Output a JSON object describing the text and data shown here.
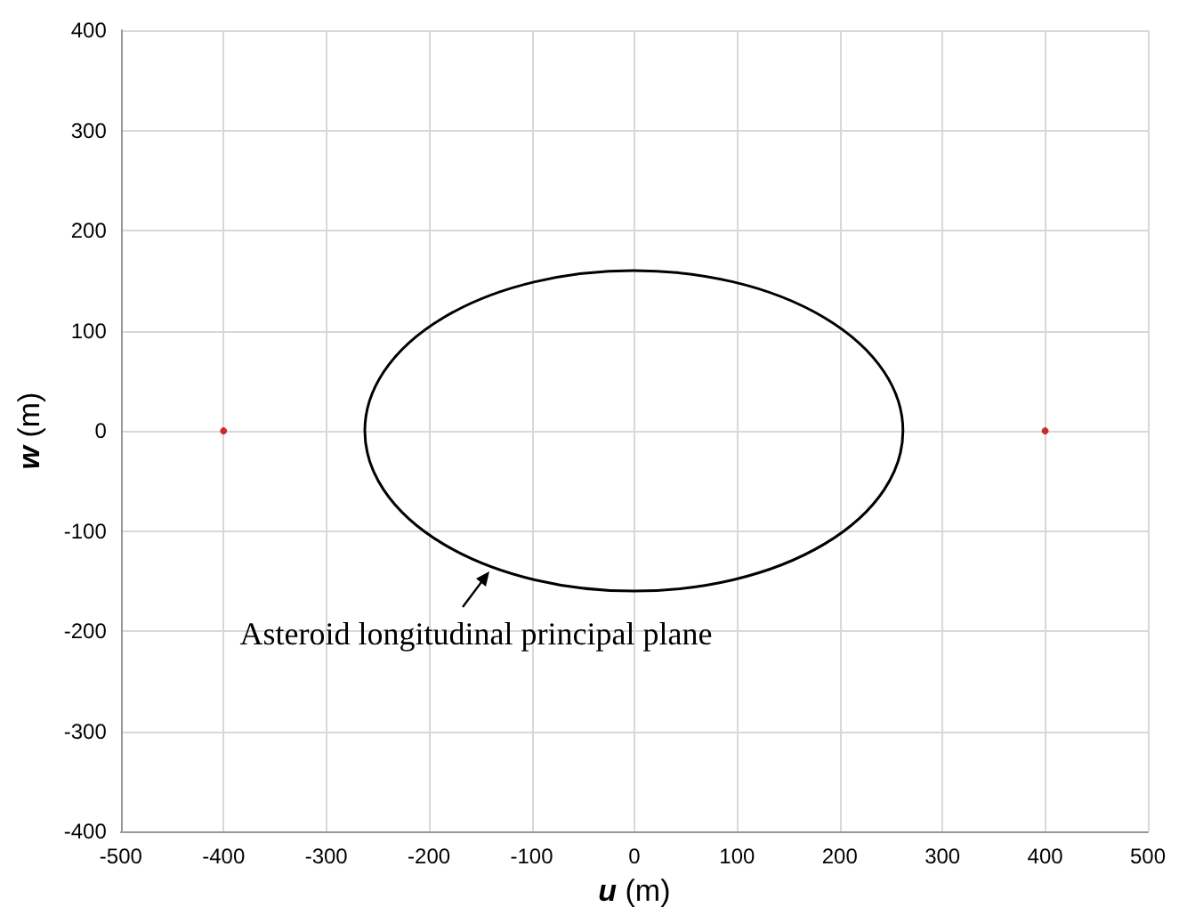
{
  "chart_data": {
    "type": "scatter",
    "xlabel": "u (m)",
    "ylabel": "w (m)",
    "xlim": [
      -500,
      500
    ],
    "xticks": [
      -500,
      -400,
      -300,
      -200,
      -100,
      0,
      100,
      200,
      300,
      400,
      500
    ],
    "ylim": [
      -400,
      400
    ],
    "yticks": [
      -400,
      -300,
      -200,
      -100,
      0,
      100,
      200,
      300,
      400
    ],
    "grid": true,
    "marker": "circle",
    "annotations": [
      "Asteroid longitudinal principal plane"
    ],
    "series": [
      {
        "color": "#c00000",
        "x": [
          -400,
          400
        ],
        "values": [
          0,
          0
        ]
      }
    ]
  }
}
